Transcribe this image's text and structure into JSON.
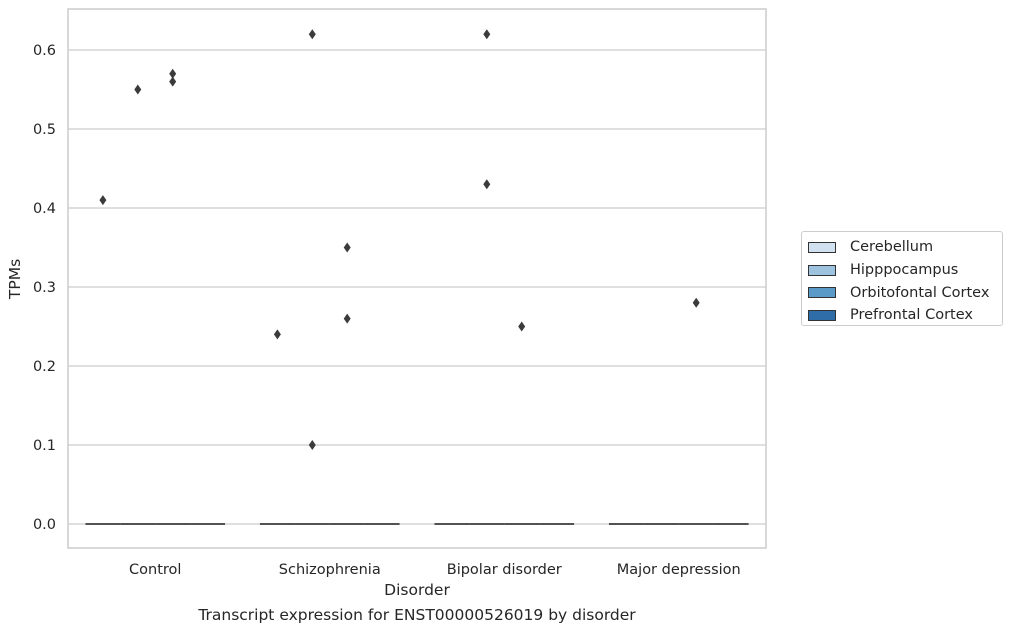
{
  "caption": "Transcript expression for ENST00000526019 by disorder",
  "chart_data": {
    "type": "box",
    "xlabel": "Disorder",
    "ylabel": "TPMs",
    "categories": [
      "Control",
      "Schizophrenia",
      "Bipolar disorder",
      "Major depression"
    ],
    "ylim": [
      -0.03,
      0.65
    ],
    "yticks": [
      "0.0",
      "0.1",
      "0.2",
      "0.3",
      "0.4",
      "0.5",
      "0.6"
    ],
    "grid": "horizontal",
    "legend_position": "right",
    "series": [
      {
        "name": "Cerebellum",
        "color": "#d1e1f0",
        "medians": [
          0,
          0,
          0,
          0
        ],
        "outliers": [
          [
            0.41
          ],
          [
            0.24
          ],
          [],
          []
        ]
      },
      {
        "name": "Hipppocampus",
        "color": "#9dc3de",
        "medians": [
          0,
          0,
          0,
          0
        ],
        "outliers": [
          [
            0.55
          ],
          [
            0.62,
            0.1
          ],
          [
            0.43,
            0.62
          ],
          []
        ]
      },
      {
        "name": "Orbitofontal Cortex",
        "color": "#5a9ac9",
        "medians": [
          0,
          0,
          0,
          0
        ],
        "outliers": [
          [
            0.57,
            0.56
          ],
          [
            0.35,
            0.26
          ],
          [
            0.25
          ],
          [
            0.28
          ]
        ]
      },
      {
        "name": "Prefrontal Cortex",
        "color": "#2f6da8",
        "medians": [
          0,
          0,
          0,
          0
        ],
        "outliers": [
          [],
          [],
          [],
          []
        ]
      }
    ]
  }
}
